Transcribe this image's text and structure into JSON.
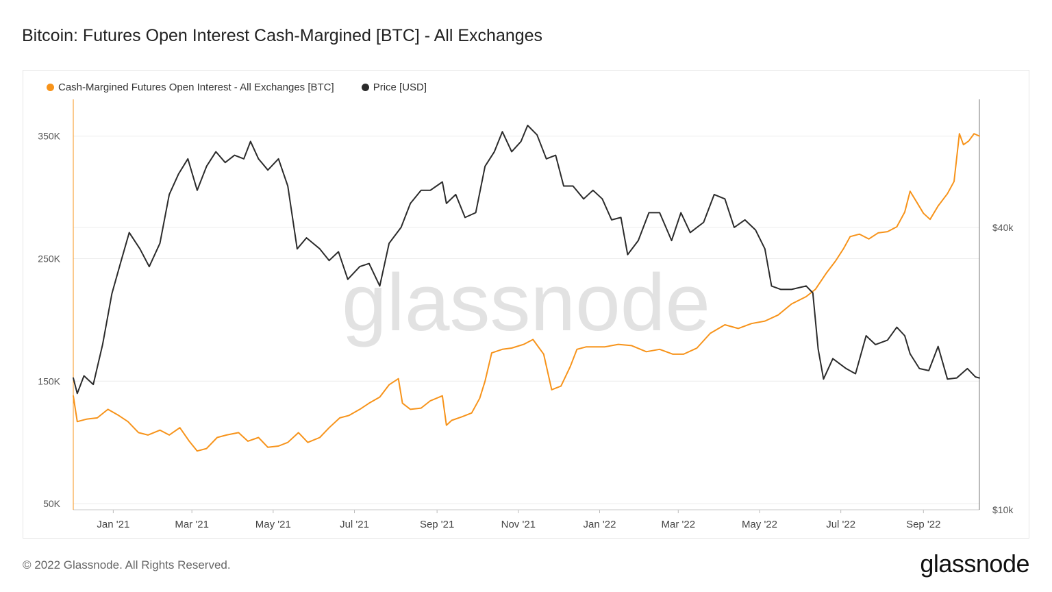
{
  "title": "Bitcoin: Futures Open Interest Cash-Margined [BTC] - All Exchanges",
  "watermark": "glassnode",
  "footer": {
    "copyright": "© 2022 Glassnode. All Rights Reserved.",
    "logo": "glassnode"
  },
  "colors": {
    "oi": "#f7931a",
    "price": "#2b2b2b",
    "grid": "#ececec",
    "watermark": "#e2e2e2"
  },
  "chart_data": {
    "type": "line",
    "title": "Bitcoin: Futures Open Interest Cash-Margined [BTC] - All Exchanges",
    "x_ticks": [
      "Jan '21",
      "Mar '21",
      "May '21",
      "Jul '21",
      "Sep '21",
      "Nov '21",
      "Jan '22",
      "Mar '22",
      "May '22",
      "Jul '22",
      "Sep '22"
    ],
    "x_tick_dates": [
      "2021-01-01",
      "2021-03-01",
      "2021-05-01",
      "2021-07-01",
      "2021-09-01",
      "2021-11-01",
      "2022-01-01",
      "2022-03-01",
      "2022-05-01",
      "2022-07-01",
      "2022-09-01"
    ],
    "x_range": [
      "2020-12-02",
      "2022-10-13"
    ],
    "y_left": {
      "ticks": [
        "50K",
        "150K",
        "250K",
        "350K"
      ],
      "tick_values": [
        50000,
        150000,
        250000,
        350000
      ],
      "range": [
        45000,
        380000
      ],
      "scale": "linear"
    },
    "y_right": {
      "ticks": [
        "$10k",
        "$40k"
      ],
      "tick_values": [
        10000,
        40000
      ],
      "range": [
        10000,
        75000
      ],
      "scale": "log"
    },
    "legend_position": "top-left",
    "grid": true,
    "series": [
      {
        "name": "Cash-Margined Futures Open Interest - All Exchanges [BTC]",
        "axis": "left",
        "points": [
          [
            "2020-12-02",
            138000
          ],
          [
            "2020-12-05",
            117000
          ],
          [
            "2020-12-12",
            119000
          ],
          [
            "2020-12-20",
            120000
          ],
          [
            "2020-12-28",
            127000
          ],
          [
            "2021-01-05",
            122000
          ],
          [
            "2021-01-12",
            117000
          ],
          [
            "2021-01-20",
            108000
          ],
          [
            "2021-01-27",
            106000
          ],
          [
            "2021-02-05",
            110000
          ],
          [
            "2021-02-12",
            106000
          ],
          [
            "2021-02-20",
            112000
          ],
          [
            "2021-02-27",
            101000
          ],
          [
            "2021-03-05",
            93000
          ],
          [
            "2021-03-12",
            95000
          ],
          [
            "2021-03-20",
            104000
          ],
          [
            "2021-03-27",
            106000
          ],
          [
            "2021-04-05",
            108000
          ],
          [
            "2021-04-12",
            101000
          ],
          [
            "2021-04-20",
            104000
          ],
          [
            "2021-04-27",
            96000
          ],
          [
            "2021-05-05",
            97000
          ],
          [
            "2021-05-12",
            100000
          ],
          [
            "2021-05-20",
            108000
          ],
          [
            "2021-05-27",
            100000
          ],
          [
            "2021-06-05",
            104000
          ],
          [
            "2021-06-12",
            112000
          ],
          [
            "2021-06-20",
            120000
          ],
          [
            "2021-06-27",
            122000
          ],
          [
            "2021-07-05",
            127000
          ],
          [
            "2021-07-12",
            132000
          ],
          [
            "2021-07-20",
            137000
          ],
          [
            "2021-07-27",
            147000
          ],
          [
            "2021-08-03",
            152000
          ],
          [
            "2021-08-06",
            132000
          ],
          [
            "2021-08-12",
            127000
          ],
          [
            "2021-08-20",
            128000
          ],
          [
            "2021-08-27",
            134000
          ],
          [
            "2021-09-05",
            138000
          ],
          [
            "2021-09-08",
            114000
          ],
          [
            "2021-09-12",
            118000
          ],
          [
            "2021-09-20",
            121000
          ],
          [
            "2021-09-27",
            124000
          ],
          [
            "2021-10-03",
            136000
          ],
          [
            "2021-10-07",
            150000
          ],
          [
            "2021-10-12",
            173000
          ],
          [
            "2021-10-20",
            176000
          ],
          [
            "2021-10-27",
            177000
          ],
          [
            "2021-11-05",
            180000
          ],
          [
            "2021-11-12",
            184000
          ],
          [
            "2021-11-20",
            172000
          ],
          [
            "2021-11-26",
            143000
          ],
          [
            "2021-12-03",
            146000
          ],
          [
            "2021-12-10",
            162000
          ],
          [
            "2021-12-15",
            176000
          ],
          [
            "2021-12-22",
            178000
          ],
          [
            "2022-01-05",
            178000
          ],
          [
            "2022-01-15",
            180000
          ],
          [
            "2022-01-25",
            179000
          ],
          [
            "2022-02-05",
            174000
          ],
          [
            "2022-02-15",
            176000
          ],
          [
            "2022-02-25",
            172000
          ],
          [
            "2022-03-05",
            172000
          ],
          [
            "2022-03-15",
            177000
          ],
          [
            "2022-03-25",
            189000
          ],
          [
            "2022-04-05",
            196000
          ],
          [
            "2022-04-15",
            193000
          ],
          [
            "2022-04-25",
            197000
          ],
          [
            "2022-05-05",
            199000
          ],
          [
            "2022-05-15",
            204000
          ],
          [
            "2022-05-25",
            213000
          ],
          [
            "2022-06-05",
            219000
          ],
          [
            "2022-06-12",
            225000
          ],
          [
            "2022-06-20",
            238000
          ],
          [
            "2022-06-27",
            248000
          ],
          [
            "2022-07-03",
            258000
          ],
          [
            "2022-07-08",
            268000
          ],
          [
            "2022-07-15",
            270000
          ],
          [
            "2022-07-22",
            266000
          ],
          [
            "2022-07-29",
            271000
          ],
          [
            "2022-08-05",
            272000
          ],
          [
            "2022-08-12",
            276000
          ],
          [
            "2022-08-18",
            288000
          ],
          [
            "2022-08-22",
            305000
          ],
          [
            "2022-08-27",
            296000
          ],
          [
            "2022-09-01",
            287000
          ],
          [
            "2022-09-06",
            282000
          ],
          [
            "2022-09-12",
            293000
          ],
          [
            "2022-09-19",
            303000
          ],
          [
            "2022-09-24",
            313000
          ],
          [
            "2022-09-28",
            352000
          ],
          [
            "2022-10-01",
            343000
          ],
          [
            "2022-10-05",
            346000
          ],
          [
            "2022-10-09",
            352000
          ],
          [
            "2022-10-13",
            350000
          ]
        ]
      },
      {
        "name": "Price [USD]",
        "axis": "right",
        "points": [
          [
            "2020-12-02",
            19100
          ],
          [
            "2020-12-05",
            17700
          ],
          [
            "2020-12-10",
            19300
          ],
          [
            "2020-12-17",
            18500
          ],
          [
            "2020-12-24",
            22500
          ],
          [
            "2020-12-31",
            28900
          ],
          [
            "2021-01-07",
            34000
          ],
          [
            "2021-01-13",
            39000
          ],
          [
            "2021-01-21",
            36000
          ],
          [
            "2021-01-28",
            33000
          ],
          [
            "2021-02-05",
            37000
          ],
          [
            "2021-02-12",
            47000
          ],
          [
            "2021-02-19",
            52000
          ],
          [
            "2021-02-26",
            56000
          ],
          [
            "2021-03-05",
            48000
          ],
          [
            "2021-03-12",
            54000
          ],
          [
            "2021-03-19",
            58000
          ],
          [
            "2021-03-26",
            55000
          ],
          [
            "2021-04-02",
            57000
          ],
          [
            "2021-04-09",
            56000
          ],
          [
            "2021-04-14",
            61000
          ],
          [
            "2021-04-20",
            56000
          ],
          [
            "2021-04-27",
            53000
          ],
          [
            "2021-05-05",
            56000
          ],
          [
            "2021-05-12",
            49000
          ],
          [
            "2021-05-19",
            36000
          ],
          [
            "2021-05-26",
            38000
          ],
          [
            "2021-06-05",
            36000
          ],
          [
            "2021-06-12",
            34000
          ],
          [
            "2021-06-19",
            35500
          ],
          [
            "2021-06-26",
            31000
          ],
          [
            "2021-07-05",
            33000
          ],
          [
            "2021-07-12",
            33500
          ],
          [
            "2021-07-20",
            30000
          ],
          [
            "2021-07-27",
            37000
          ],
          [
            "2021-08-05",
            40000
          ],
          [
            "2021-08-12",
            45000
          ],
          [
            "2021-08-20",
            48000
          ],
          [
            "2021-08-27",
            48000
          ],
          [
            "2021-09-05",
            50000
          ],
          [
            "2021-09-08",
            45000
          ],
          [
            "2021-09-15",
            47000
          ],
          [
            "2021-09-22",
            42000
          ],
          [
            "2021-09-30",
            43000
          ],
          [
            "2021-10-07",
            54000
          ],
          [
            "2021-10-14",
            58000
          ],
          [
            "2021-10-20",
            64000
          ],
          [
            "2021-10-27",
            58000
          ],
          [
            "2021-11-03",
            61000
          ],
          [
            "2021-11-08",
            66000
          ],
          [
            "2021-11-15",
            63000
          ],
          [
            "2021-11-22",
            56000
          ],
          [
            "2021-11-29",
            57000
          ],
          [
            "2021-12-05",
            49000
          ],
          [
            "2021-12-12",
            49000
          ],
          [
            "2021-12-20",
            46000
          ],
          [
            "2021-12-27",
            48000
          ],
          [
            "2022-01-03",
            46000
          ],
          [
            "2022-01-10",
            41500
          ],
          [
            "2022-01-17",
            42000
          ],
          [
            "2022-01-22",
            35000
          ],
          [
            "2022-01-30",
            37500
          ],
          [
            "2022-02-07",
            43000
          ],
          [
            "2022-02-15",
            43000
          ],
          [
            "2022-02-24",
            37500
          ],
          [
            "2022-03-03",
            43000
          ],
          [
            "2022-03-10",
            39000
          ],
          [
            "2022-03-20",
            41000
          ],
          [
            "2022-03-28",
            47000
          ],
          [
            "2022-04-05",
            46000
          ],
          [
            "2022-04-12",
            40000
          ],
          [
            "2022-04-20",
            41500
          ],
          [
            "2022-04-28",
            39500
          ],
          [
            "2022-05-05",
            36000
          ],
          [
            "2022-05-10",
            30000
          ],
          [
            "2022-05-17",
            29500
          ],
          [
            "2022-05-25",
            29500
          ],
          [
            "2022-06-05",
            30000
          ],
          [
            "2022-06-10",
            29000
          ],
          [
            "2022-06-14",
            22000
          ],
          [
            "2022-06-18",
            19000
          ],
          [
            "2022-06-25",
            21000
          ],
          [
            "2022-07-05",
            20000
          ],
          [
            "2022-07-12",
            19500
          ],
          [
            "2022-07-20",
            23500
          ],
          [
            "2022-07-27",
            22500
          ],
          [
            "2022-08-05",
            23000
          ],
          [
            "2022-08-12",
            24500
          ],
          [
            "2022-08-18",
            23500
          ],
          [
            "2022-08-22",
            21500
          ],
          [
            "2022-08-29",
            20000
          ],
          [
            "2022-09-05",
            19800
          ],
          [
            "2022-09-12",
            22300
          ],
          [
            "2022-09-19",
            19000
          ],
          [
            "2022-09-26",
            19100
          ],
          [
            "2022-10-04",
            20000
          ],
          [
            "2022-10-10",
            19200
          ],
          [
            "2022-10-13",
            19100
          ]
        ]
      }
    ]
  }
}
